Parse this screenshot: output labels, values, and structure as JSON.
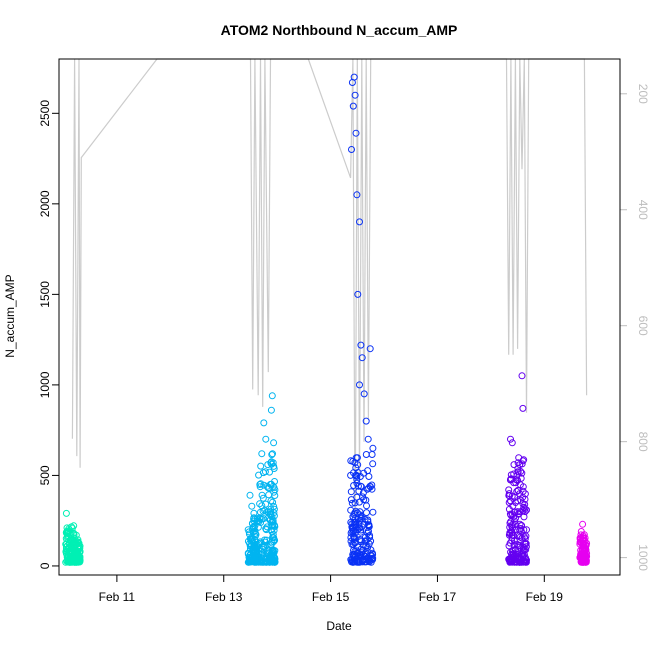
{
  "chart_data": {
    "type": "scatter",
    "title": "ATOM2 Northbound N_accum_AMP",
    "xlabel": "Date",
    "ylabel": "N_accum_AMP",
    "xlim": [
      "2021-02-09 22:00",
      "2021-02-20 10:00"
    ],
    "ylim": [
      -50,
      2800
    ],
    "x_ticks": [
      {
        "x": "2021-02-11 00:00",
        "label": "Feb 11"
      },
      {
        "x": "2021-02-13 00:00",
        "label": "Feb 13"
      },
      {
        "x": "2021-02-15 00:00",
        "label": "Feb 15"
      },
      {
        "x": "2021-02-17 00:00",
        "label": "Feb 17"
      },
      {
        "x": "2021-02-19 00:00",
        "label": "Feb 19"
      }
    ],
    "y_ticks": [
      0,
      500,
      1000,
      1500,
      2000,
      2500
    ],
    "secondary_axis": {
      "ylim": [
        1030,
        140
      ],
      "ticks": [
        200,
        400,
        600,
        800,
        1000
      ],
      "color": "#bdbdbd"
    },
    "grid": false,
    "legend": "none",
    "colors": {
      "axis": "#000000",
      "secondary_line": "#cccccc",
      "secondary_axis": "#bdbdbd"
    },
    "series": [
      {
        "color": "#00f0b4",
        "clusters": [
          {
            "start": "2021-02-10 01:00",
            "end": "2021-02-10 05:00",
            "points": [
              [
                0.0,
                120
              ],
              [
                0.08,
                290
              ],
              [
                0.15,
                210
              ],
              [
                0.25,
                160
              ],
              [
                0.4,
                95
              ],
              [
                0.55,
                140
              ],
              [
                0.7,
                75
              ],
              [
                0.85,
                180
              ],
              [
                1.0,
                60
              ]
            ]
          },
          {
            "start": "2021-02-10 05:00",
            "end": "2021-02-10 07:30",
            "points": [
              [
                0.0,
                110
              ],
              [
                0.3,
                170
              ],
              [
                0.6,
                145
              ],
              [
                1.0,
                80
              ]
            ]
          }
        ]
      },
      {
        "color": "#00b4f0",
        "clusters": [
          {
            "start": "2021-02-13 11:00",
            "end": "2021-02-13 15:00",
            "points": [
              [
                0.0,
                200
              ],
              [
                0.2,
                390
              ],
              [
                0.4,
                330
              ],
              [
                0.6,
                260
              ],
              [
                0.8,
                180
              ],
              [
                1.0,
                120
              ]
            ]
          },
          {
            "start": "2021-02-13 15:00",
            "end": "2021-02-13 21:00",
            "points": [
              [
                0.0,
                250
              ],
              [
                0.2,
                450
              ],
              [
                0.35,
                620
              ],
              [
                0.5,
                790
              ],
              [
                0.65,
                700
              ],
              [
                0.8,
                560
              ],
              [
                1.0,
                300
              ]
            ]
          },
          {
            "start": "2021-02-13 21:00",
            "end": "2021-02-13 23:00",
            "points": [
              [
                0.2,
                860
              ],
              [
                0.4,
                940
              ],
              [
                0.7,
                680
              ],
              [
                1.0,
                420
              ]
            ]
          }
        ]
      },
      {
        "color": "#0a32f5",
        "clusters": [
          {
            "start": "2021-02-15 09:00",
            "end": "2021-02-15 13:00",
            "points": [
              [
                0.0,
                500
              ],
              [
                0.1,
                2300
              ],
              [
                0.2,
                2670
              ],
              [
                0.3,
                2540
              ],
              [
                0.4,
                2700
              ],
              [
                0.5,
                2600
              ],
              [
                0.6,
                2390
              ],
              [
                0.7,
                2050
              ],
              [
                0.8,
                1500
              ],
              [
                1.0,
                1000
              ]
            ]
          },
          {
            "start": "2021-02-15 13:00",
            "end": "2021-02-15 19:00",
            "points": [
              [
                0.0,
                1900
              ],
              [
                0.1,
                1220
              ],
              [
                0.2,
                1150
              ],
              [
                0.35,
                950
              ],
              [
                0.5,
                800
              ],
              [
                0.65,
                700
              ],
              [
                0.8,
                1200
              ],
              [
                1.0,
                650
              ]
            ]
          }
        ]
      },
      {
        "color": "#6400f0",
        "clusters": [
          {
            "start": "2021-02-18 08:00",
            "end": "2021-02-18 12:00",
            "points": [
              [
                0.0,
                420
              ],
              [
                0.2,
                700
              ],
              [
                0.4,
                680
              ],
              [
                0.6,
                560
              ],
              [
                0.8,
                460
              ],
              [
                1.0,
                300
              ]
            ]
          },
          {
            "start": "2021-02-18 12:00",
            "end": "2021-02-18 16:00",
            "points": [
              [
                0.0,
                360
              ],
              [
                0.3,
                300
              ],
              [
                0.5,
                1050
              ],
              [
                0.6,
                870
              ],
              [
                0.8,
                340
              ],
              [
                1.0,
                200
              ]
            ]
          }
        ]
      },
      {
        "color": "#e600f0",
        "clusters": [
          {
            "start": "2021-02-19 16:00",
            "end": "2021-02-19 19:00",
            "points": [
              [
                0.0,
                120
              ],
              [
                0.2,
                190
              ],
              [
                0.4,
                230
              ],
              [
                0.6,
                150
              ],
              [
                0.8,
                100
              ],
              [
                1.0,
                70
              ]
            ]
          }
        ]
      }
    ],
    "secondary_series": [
      {
        "x": "2021-02-10 04:00",
        "y": 795
      },
      {
        "x": "2021-02-10 05:00",
        "y": 140
      },
      {
        "x": "2021-02-10 06:00",
        "y": 825
      },
      {
        "x": "2021-02-10 07:00",
        "y": 140
      },
      {
        "x": "2021-02-10 07:30",
        "y": 845
      },
      {
        "x": "2021-02-10 08:00",
        "y": 310
      },
      {
        "x": "2021-02-11 18:00",
        "y": 140
      },
      {
        "x": "2021-02-13 12:00",
        "y": 140
      },
      {
        "x": "2021-02-13 13:00",
        "y": 710
      },
      {
        "x": "2021-02-13 14:00",
        "y": 140
      },
      {
        "x": "2021-02-13 15:30",
        "y": 720
      },
      {
        "x": "2021-02-13 16:30",
        "y": 140
      },
      {
        "x": "2021-02-13 17:30",
        "y": 740
      },
      {
        "x": "2021-02-13 18:30",
        "y": 140
      },
      {
        "x": "2021-02-13 20:00",
        "y": 680
      },
      {
        "x": "2021-02-13 21:00",
        "y": 140
      },
      {
        "x": "2021-02-14 14:00",
        "y": 140
      },
      {
        "x": "2021-02-15 09:00",
        "y": 345
      },
      {
        "x": "2021-02-15 10:00",
        "y": 140
      },
      {
        "x": "2021-02-15 11:00",
        "y": 980
      },
      {
        "x": "2021-02-15 12:00",
        "y": 140
      },
      {
        "x": "2021-02-15 13:00",
        "y": 860
      },
      {
        "x": "2021-02-15 14:00",
        "y": 140
      },
      {
        "x": "2021-02-15 15:00",
        "y": 800
      },
      {
        "x": "2021-02-15 16:00",
        "y": 140
      },
      {
        "x": "2021-02-15 17:00",
        "y": 760
      },
      {
        "x": "2021-02-15 18:00",
        "y": 140
      },
      {
        "x": "2021-02-18 07:00",
        "y": 140
      },
      {
        "x": "2021-02-18 08:00",
        "y": 650
      },
      {
        "x": "2021-02-18 09:00",
        "y": 140
      },
      {
        "x": "2021-02-18 10:00",
        "y": 650
      },
      {
        "x": "2021-02-18 11:00",
        "y": 140
      },
      {
        "x": "2021-02-18 12:00",
        "y": 640
      },
      {
        "x": "2021-02-18 13:00",
        "y": 140
      },
      {
        "x": "2021-02-18 14:00",
        "y": 330
      },
      {
        "x": "2021-02-18 15:00",
        "y": 140
      },
      {
        "x": "2021-02-18 16:00",
        "y": 750
      },
      {
        "x": "2021-02-18 17:00",
        "y": 140
      },
      {
        "x": "2021-02-19 18:00",
        "y": 140
      },
      {
        "x": "2021-02-19 19:00",
        "y": 720
      }
    ]
  }
}
